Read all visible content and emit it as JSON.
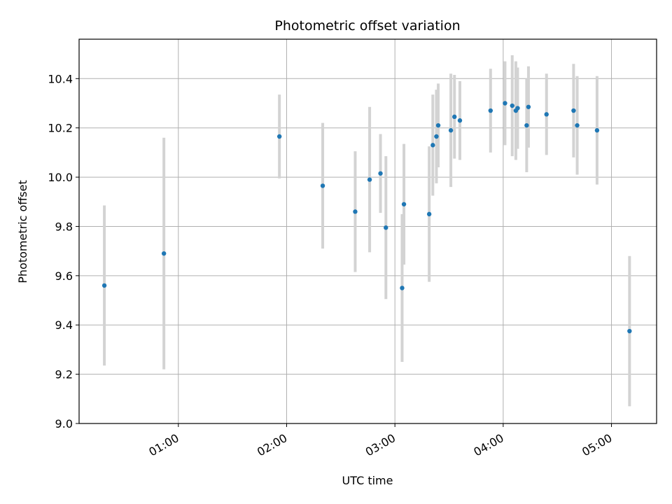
{
  "chart_data": {
    "type": "scatter",
    "title": "Photometric offset variation",
    "xlabel": "UTC time",
    "ylabel": "Photometric offset",
    "x_format": "HH:MM (UTC)",
    "xlim": [
      "00:05",
      "05:25"
    ],
    "ylim": [
      9.0,
      10.56
    ],
    "x_ticks": [
      "01:00",
      "02:00",
      "03:00",
      "04:00",
      "05:00"
    ],
    "y_ticks": [
      "9.0",
      "9.2",
      "9.4",
      "9.6",
      "9.8",
      "10.0",
      "10.2",
      "10.4"
    ],
    "grid": true,
    "legend": "none",
    "colors": {
      "point": "#1f77b4",
      "errorbar": "#d3d3d3",
      "grid": "#b0b0b0"
    },
    "points": [
      {
        "x": "00:19",
        "y": 9.56,
        "yerr": 0.325
      },
      {
        "x": "00:52",
        "y": 9.69,
        "yerr": 0.47
      },
      {
        "x": "01:56",
        "y": 10.165,
        "yerr": 0.17
      },
      {
        "x": "02:20",
        "y": 9.965,
        "yerr": 0.255
      },
      {
        "x": "02:38",
        "y": 9.86,
        "yerr": 0.245
      },
      {
        "x": "02:46",
        "y": 9.99,
        "yerr": 0.295
      },
      {
        "x": "02:52",
        "y": 10.015,
        "yerr": 0.16
      },
      {
        "x": "02:55",
        "y": 9.795,
        "yerr": 0.29
      },
      {
        "x": "03:04",
        "y": 9.55,
        "yerr": 0.3
      },
      {
        "x": "03:05",
        "y": 9.89,
        "yerr": 0.245
      },
      {
        "x": "03:19",
        "y": 9.85,
        "yerr": 0.275
      },
      {
        "x": "03:21",
        "y": 10.13,
        "yerr": 0.205
      },
      {
        "x": "03:23",
        "y": 10.165,
        "yerr": 0.19
      },
      {
        "x": "03:24",
        "y": 10.21,
        "yerr": 0.17
      },
      {
        "x": "03:31",
        "y": 10.19,
        "yerr": 0.23
      },
      {
        "x": "03:33",
        "y": 10.245,
        "yerr": 0.17
      },
      {
        "x": "03:36",
        "y": 10.23,
        "yerr": 0.16
      },
      {
        "x": "03:53",
        "y": 10.27,
        "yerr": 0.17
      },
      {
        "x": "04:01",
        "y": 10.3,
        "yerr": 0.17
      },
      {
        "x": "04:05",
        "y": 10.29,
        "yerr": 0.205
      },
      {
        "x": "04:07",
        "y": 10.27,
        "yerr": 0.2
      },
      {
        "x": "04:08",
        "y": 10.28,
        "yerr": 0.165
      },
      {
        "x": "04:13",
        "y": 10.21,
        "yerr": 0.19
      },
      {
        "x": "04:14",
        "y": 10.285,
        "yerr": 0.165
      },
      {
        "x": "04:24",
        "y": 10.255,
        "yerr": 0.165
      },
      {
        "x": "04:39",
        "y": 10.27,
        "yerr": 0.19
      },
      {
        "x": "04:41",
        "y": 10.21,
        "yerr": 0.2
      },
      {
        "x": "04:52",
        "y": 10.19,
        "yerr": 0.22
      },
      {
        "x": "05:10",
        "y": 9.375,
        "yerr": 0.305
      }
    ]
  }
}
